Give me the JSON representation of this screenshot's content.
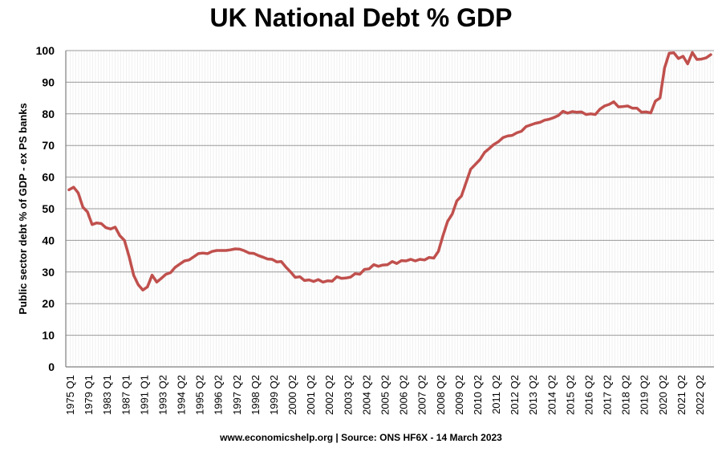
{
  "chart_data": {
    "type": "line",
    "title": "UK National Debt % GDP",
    "xlabel": "",
    "ylabel": "Public sector debt % of GDP - ex PS banks",
    "source": "www.economicshelp.org | Source: ONS HF6X - 14 March 2023",
    "ylim": [
      0,
      100
    ],
    "yticks": [
      0,
      10,
      20,
      30,
      40,
      50,
      60,
      70,
      80,
      90,
      100
    ],
    "grid": true,
    "legend": "none",
    "color": "#c0504d",
    "x_tick_labels": [
      "1975 Q1",
      "1979 Q1",
      "1983 Q1",
      "1987 Q1",
      "1991 Q1",
      "1993 Q2",
      "1994 Q2",
      "1995 Q2",
      "1996 Q2",
      "1997 Q2",
      "1998 Q2",
      "1999 Q2",
      "2000 Q2",
      "2001 Q2",
      "2002 Q2",
      "2003 Q2",
      "2004 Q2",
      "2005 Q2",
      "2006 Q2",
      "2007 Q2",
      "2008 Q2",
      "2009 Q2",
      "2010 Q2",
      "2011 Q2",
      "2012 Q2",
      "2013 Q2",
      "2014 Q2",
      "2015 Q2",
      "2016 Q2",
      "2017 Q2",
      "2018 Q2",
      "2019 Q2",
      "2020 Q2",
      "2021 Q2",
      "2022 Q2"
    ],
    "series": [
      {
        "values": [
          56,
          56.8,
          55,
          50.5,
          49,
          45,
          45.5,
          45.3,
          44,
          43.6,
          44.2,
          41.5,
          40,
          35,
          29,
          26,
          24.3,
          25.3,
          29,
          26.8,
          28,
          29.3,
          29.8,
          31.5,
          32.5,
          33.5,
          33.8,
          34.8,
          35.8,
          36,
          35.8,
          36.5,
          36.8,
          36.8,
          36.8,
          37,
          37.3,
          37.2,
          36.7,
          36,
          35.9,
          35.2,
          34.7,
          34.1,
          34,
          33.2,
          33.3,
          31.5,
          30,
          28.3,
          28.5,
          27.3,
          27.5,
          27,
          27.6,
          26.8,
          27.2,
          27.1,
          28.5,
          28,
          28.1,
          28.4,
          29.5,
          29.3,
          30.8,
          31,
          32.3,
          31.8,
          32.2,
          32.3,
          33.3,
          32.7,
          33.6,
          33.5,
          34,
          33.5,
          34,
          33.8,
          34.6,
          34.4,
          36.5,
          41.5,
          46,
          48.3,
          52.5,
          54,
          58.3,
          62.5,
          64,
          65.5,
          67.8,
          69,
          70.3,
          71.2,
          72.5,
          73,
          73.2,
          74,
          74.5,
          76,
          76.5,
          77,
          77.3,
          78,
          78.3,
          78.8,
          79.5,
          80.8,
          80.2,
          80.7,
          80.5,
          80.6,
          79.8,
          80,
          79.8,
          81.5,
          82.5,
          83,
          83.8,
          82.2,
          82.3,
          82.5,
          81.8,
          81.8,
          80.5,
          80.6,
          80.3,
          84,
          85,
          94.5,
          99.2,
          99.3,
          97.5,
          98.2,
          95.8,
          99.4,
          97.2,
          97.3,
          97.7,
          98.7
        ]
      }
    ]
  }
}
